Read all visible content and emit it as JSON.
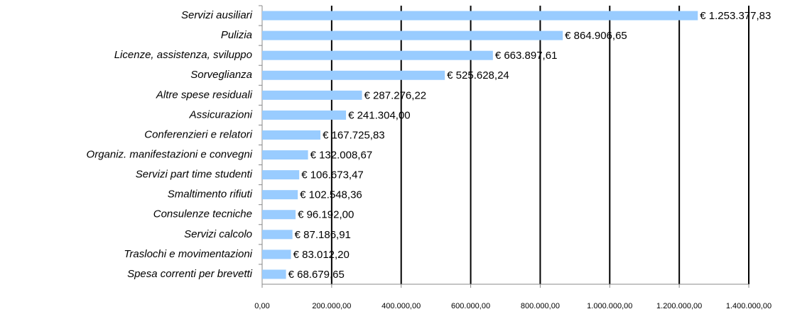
{
  "chart_data": {
    "type": "bar",
    "orientation": "horizontal",
    "categories": [
      "Servizi ausiliari",
      "Pulizia",
      "Licenze, assistenza, sviluppo",
      "Sorveglianza",
      "Altre spese residuali",
      "Assicurazioni",
      "Conferenzieri  e relatori",
      "Organiz. manifestazioni e convegni",
      "Servizi part time studenti",
      "Smaltimento rifiuti",
      "Consulenze tecniche",
      "Servizi calcolo",
      "Traslochi e movimentazioni",
      "Spesa correnti per brevetti"
    ],
    "values": [
      1253377.83,
      864906.65,
      663897.61,
      525628.24,
      287276.22,
      241304.0,
      167725.83,
      132008.67,
      106673.47,
      102548.36,
      96192.0,
      87186.91,
      83012.2,
      68679.65
    ],
    "value_labels": [
      "€ 1.253.377,83",
      "€ 864.906,65",
      "€ 663.897,61",
      "€ 525.628,24",
      "€ 287.276,22",
      "€ 241.304,00",
      "€ 167.725,83",
      "€ 132.008,67",
      "€ 106.673,47",
      "€ 102.548,36",
      "€ 96.192,00",
      "€ 87.186,91",
      "€ 83.012,20",
      "€ 68.679,65"
    ],
    "color": "#99ccff",
    "xlim": [
      0,
      1400000
    ],
    "xticks": [
      {
        "value": 0,
        "label": "0,00"
      },
      {
        "value": 200000,
        "label": "200.000,00"
      },
      {
        "value": 400000,
        "label": "400.000,00"
      },
      {
        "value": 600000,
        "label": "600.000,00"
      },
      {
        "value": 800000,
        "label": "800.000,00"
      },
      {
        "value": 1000000,
        "label": "1.000.000,00"
      },
      {
        "value": 1200000,
        "label": "1.200.000,00"
      },
      {
        "value": 1400000,
        "label": "1.400.000,00"
      }
    ],
    "grid": true
  }
}
